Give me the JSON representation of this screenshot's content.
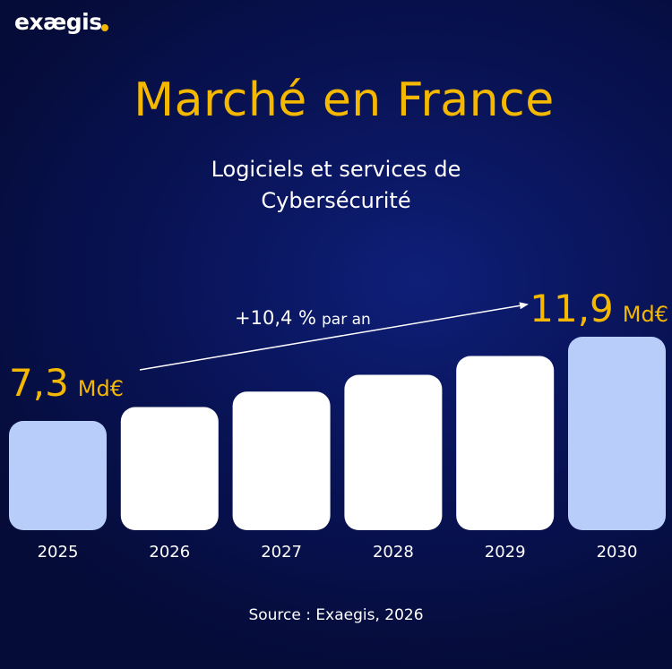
{
  "brand": {
    "name": "exægis",
    "dot_color": "#f5b800"
  },
  "header": {
    "title": "Marché en France",
    "subtitle_line1": "Logiciels et services de",
    "subtitle_line2": "Cybersécurité"
  },
  "footer": {
    "source": "Source : Exaegis, 2026"
  },
  "colors": {
    "accent": "#f5b800",
    "highlight_bar": "#b9cdfb",
    "bar": "#ffffff",
    "background": "#0a1660"
  },
  "chart_data": {
    "type": "bar",
    "categories": [
      "2025",
      "2026",
      "2027",
      "2028",
      "2029",
      "2030"
    ],
    "values": [
      7.3,
      8.06,
      8.9,
      9.82,
      10.85,
      11.9
    ],
    "unit": "Md€",
    "highlighted": [
      "2025",
      "2030"
    ],
    "annotations": {
      "start_number": "7,3",
      "start_unit": "Md€",
      "end_number": "11,9",
      "end_unit": "Md€",
      "growth_value": "+10,4 %",
      "growth_suffix": "par an"
    },
    "grid": false,
    "legend": "none"
  }
}
